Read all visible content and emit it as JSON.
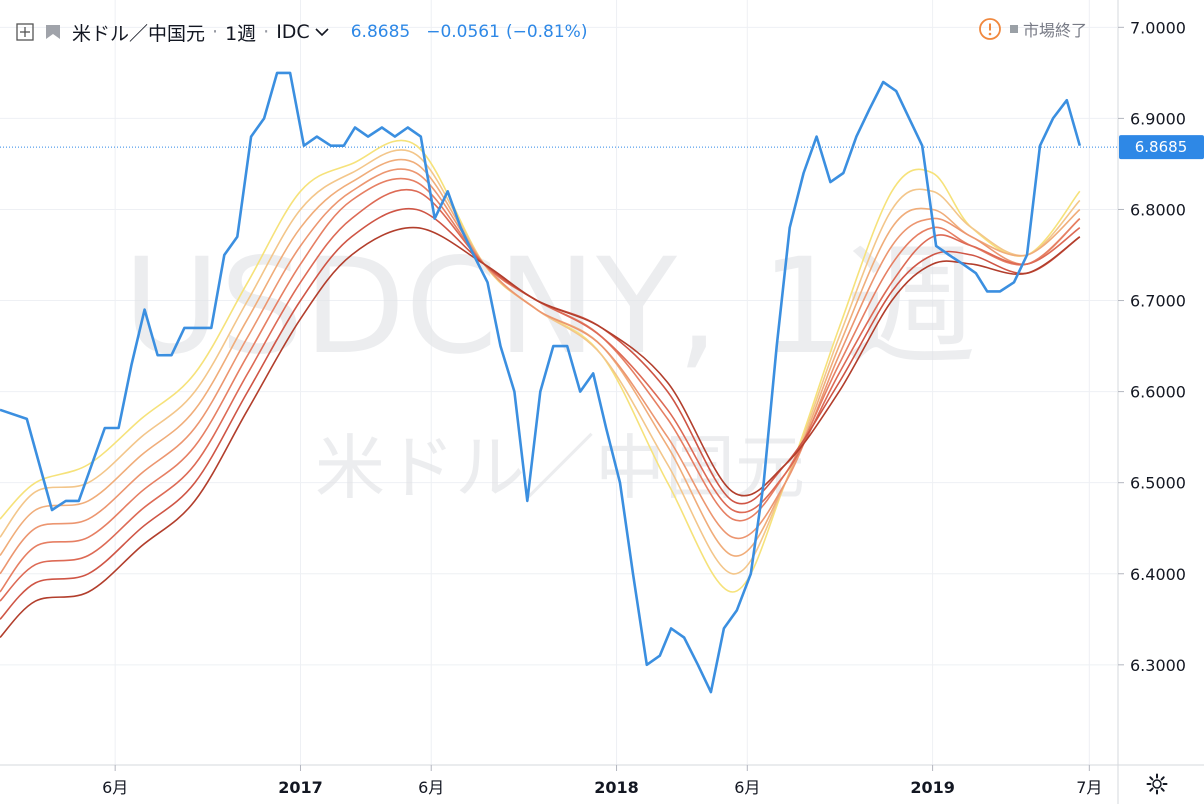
{
  "header": {
    "pair_label": "米ドル／中国元",
    "interval_label": "1週",
    "source_label": "IDC",
    "last_price": "6.8685",
    "change": "−0.0561",
    "change_pct": "(−0.81%)",
    "market_status": "市場終了"
  },
  "watermark": {
    "symbol_text": "USDCNY, 1週",
    "name_text": "米ドル／中国元"
  },
  "price_axis": {
    "ticks": [
      "7.0000",
      "6.9000",
      "6.8000",
      "6.7000",
      "6.6000",
      "6.5000",
      "6.4000",
      "6.3000"
    ],
    "last_label": "6.8685"
  },
  "time_axis": {
    "ticks": [
      {
        "t": "2016-06-01",
        "label": "6月",
        "bold": false
      },
      {
        "t": "2017-01-01",
        "label": "2017",
        "bold": true
      },
      {
        "t": "2017-06-01",
        "label": "6月",
        "bold": false
      },
      {
        "t": "2018-01-01",
        "label": "2018",
        "bold": true
      },
      {
        "t": "2018-06-01",
        "label": "6月",
        "bold": false
      },
      {
        "t": "2019-01-01",
        "label": "2019",
        "bold": true
      },
      {
        "t": "2019-07-01",
        "label": "7月",
        "bold": false
      }
    ]
  },
  "colors": {
    "price_line": "#3b8fe0",
    "ribbon": [
      "#f6e27a",
      "#f3c68a",
      "#f0ad7a",
      "#ec9670",
      "#e67f63",
      "#dd6a55",
      "#cf5545",
      "#b23e2c"
    ],
    "last_price_box": "#2e88e6",
    "grid": "#eef0f4",
    "axis_text": "#131722"
  },
  "chart_data": {
    "type": "line",
    "x_range": [
      "2016-01-20",
      "2019-06-26"
    ],
    "ylim": [
      6.19,
      7.03
    ],
    "price": {
      "x": [
        "2016-01-20",
        "2016-02-20",
        "2016-03-20",
        "2016-04-05",
        "2016-04-20",
        "2016-05-05",
        "2016-05-20",
        "2016-06-05",
        "2016-06-20",
        "2016-07-05",
        "2016-07-20",
        "2016-08-05",
        "2016-08-20",
        "2016-09-05",
        "2016-09-20",
        "2016-10-05",
        "2016-10-20",
        "2016-11-05",
        "2016-11-20",
        "2016-12-05",
        "2016-12-20",
        "2017-01-05",
        "2017-01-20",
        "2017-02-05",
        "2017-02-20",
        "2017-03-05",
        "2017-03-20",
        "2017-04-05",
        "2017-04-20",
        "2017-05-05",
        "2017-05-20",
        "2017-06-05",
        "2017-06-20",
        "2017-07-05",
        "2017-07-20",
        "2017-08-05",
        "2017-08-20",
        "2017-09-05",
        "2017-09-20",
        "2017-10-05",
        "2017-10-20",
        "2017-11-05",
        "2017-11-20",
        "2017-12-05",
        "2017-12-20",
        "2018-01-05",
        "2018-01-20",
        "2018-02-05",
        "2018-02-20",
        "2018-03-05",
        "2018-03-20",
        "2018-04-05",
        "2018-04-20",
        "2018-05-05",
        "2018-05-20",
        "2018-06-05",
        "2018-06-20",
        "2018-07-05",
        "2018-07-20",
        "2018-08-05",
        "2018-08-20",
        "2018-09-05",
        "2018-09-20",
        "2018-10-05",
        "2018-10-20",
        "2018-11-05",
        "2018-11-20",
        "2018-12-05",
        "2018-12-20",
        "2019-01-05",
        "2019-01-20",
        "2019-02-05",
        "2019-02-20",
        "2019-03-05",
        "2019-03-20",
        "2019-04-05",
        "2019-04-20",
        "2019-05-05",
        "2019-05-20",
        "2019-06-05",
        "2019-06-20"
      ],
      "y": [
        6.58,
        6.57,
        6.47,
        6.48,
        6.48,
        6.52,
        6.56,
        6.56,
        6.63,
        6.69,
        6.64,
        6.64,
        6.67,
        6.67,
        6.67,
        6.75,
        6.77,
        6.88,
        6.9,
        6.95,
        6.95,
        6.87,
        6.88,
        6.87,
        6.87,
        6.89,
        6.88,
        6.89,
        6.88,
        6.89,
        6.88,
        6.79,
        6.82,
        6.78,
        6.75,
        6.72,
        6.65,
        6.6,
        6.48,
        6.6,
        6.65,
        6.65,
        6.6,
        6.62,
        6.56,
        6.5,
        6.4,
        6.3,
        6.31,
        6.34,
        6.33,
        6.3,
        6.27,
        6.34,
        6.36,
        6.4,
        6.5,
        6.65,
        6.78,
        6.84,
        6.88,
        6.83,
        6.84,
        6.88,
        6.91,
        6.94,
        6.93,
        6.9,
        6.87,
        6.76,
        6.75,
        6.74,
        6.73,
        6.71,
        6.71,
        6.72,
        6.75,
        6.87,
        6.9,
        6.92,
        6.87
      ]
    },
    "ribbon": {
      "x": [
        "2016-01-20",
        "2016-03-01",
        "2016-05-01",
        "2016-07-01",
        "2016-09-01",
        "2016-11-01",
        "2017-01-01",
        "2017-03-01",
        "2017-05-15",
        "2017-08-01",
        "2017-10-01",
        "2017-12-15",
        "2018-03-01",
        "2018-05-15",
        "2018-07-15",
        "2018-09-15",
        "2018-11-15",
        "2019-01-01",
        "2019-02-15",
        "2019-04-20",
        "2019-06-20"
      ],
      "series": [
        {
          "values": [
            6.46,
            6.5,
            6.52,
            6.57,
            6.62,
            6.72,
            6.82,
            6.85,
            6.87,
            6.74,
            6.69,
            6.64,
            6.5,
            6.38,
            6.5,
            6.67,
            6.82,
            6.84,
            6.78,
            6.75,
            6.82
          ]
        },
        {
          "values": [
            6.44,
            6.49,
            6.5,
            6.55,
            6.6,
            6.7,
            6.8,
            6.84,
            6.86,
            6.74,
            6.69,
            6.64,
            6.52,
            6.4,
            6.5,
            6.66,
            6.8,
            6.82,
            6.78,
            6.75,
            6.81
          ]
        },
        {
          "values": [
            6.42,
            6.47,
            6.48,
            6.53,
            6.58,
            6.68,
            6.78,
            6.83,
            6.85,
            6.74,
            6.69,
            6.65,
            6.54,
            6.42,
            6.5,
            6.65,
            6.78,
            6.8,
            6.77,
            6.75,
            6.8
          ]
        },
        {
          "values": [
            6.4,
            6.45,
            6.46,
            6.51,
            6.56,
            6.66,
            6.76,
            6.82,
            6.84,
            6.74,
            6.69,
            6.65,
            6.55,
            6.44,
            6.5,
            6.64,
            6.76,
            6.79,
            6.77,
            6.74,
            6.79
          ]
        },
        {
          "values": [
            6.38,
            6.43,
            6.44,
            6.49,
            6.54,
            6.64,
            6.74,
            6.81,
            6.83,
            6.74,
            6.7,
            6.66,
            6.57,
            6.46,
            6.51,
            6.63,
            6.74,
            6.78,
            6.76,
            6.74,
            6.79
          ]
        },
        {
          "values": [
            6.37,
            6.41,
            6.42,
            6.47,
            6.52,
            6.62,
            6.72,
            6.79,
            6.82,
            6.74,
            6.7,
            6.66,
            6.58,
            6.47,
            6.51,
            6.62,
            6.72,
            6.77,
            6.76,
            6.74,
            6.78
          ]
        },
        {
          "values": [
            6.35,
            6.39,
            6.4,
            6.45,
            6.5,
            6.6,
            6.7,
            6.77,
            6.8,
            6.74,
            6.7,
            6.67,
            6.6,
            6.48,
            6.52,
            6.61,
            6.71,
            6.75,
            6.75,
            6.73,
            6.77
          ]
        },
        {
          "values": [
            6.33,
            6.37,
            6.38,
            6.43,
            6.48,
            6.58,
            6.68,
            6.75,
            6.78,
            6.74,
            6.7,
            6.67,
            6.61,
            6.49,
            6.52,
            6.6,
            6.7,
            6.74,
            6.74,
            6.73,
            6.77
          ]
        }
      ]
    },
    "last_value": 6.8685
  }
}
